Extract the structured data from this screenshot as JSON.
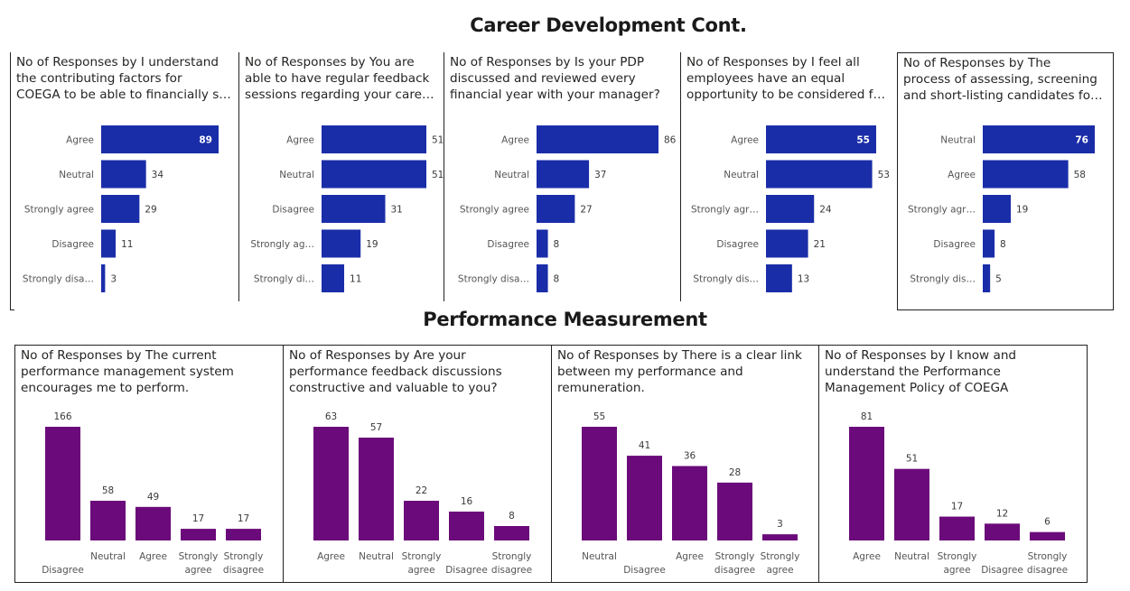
{
  "titles": {
    "career": "Career Development Cont.",
    "performance": "Performance Measurement"
  },
  "colors": {
    "bar_blue": "#1a2da8",
    "bar_purple": "#6b0a7a",
    "value_label_dark": "#3a3a3a",
    "value_label_light": "#ffffff"
  },
  "chart_data": [
    {
      "type": "bar",
      "orientation": "horizontal",
      "title_lines": [
        "No of Responses by I understand",
        "the contributing factors for",
        "COEGA to be able to financially s…"
      ],
      "categories": [
        "Agree",
        "Neutral",
        "Strongly agree",
        "Disagree",
        "Strongly disa…"
      ],
      "values": [
        89,
        34,
        29,
        11,
        3
      ],
      "label_inside_first": true
    },
    {
      "type": "bar",
      "orientation": "horizontal",
      "title_lines": [
        "No of Responses by You are",
        "able to have regular feedback",
        "sessions regarding your care…"
      ],
      "categories": [
        "Agree",
        "Neutral",
        "Disagree",
        "Strongly ag…",
        "Strongly di…"
      ],
      "values": [
        51,
        51,
        31,
        19,
        11
      ],
      "label_inside_first": false
    },
    {
      "type": "bar",
      "orientation": "horizontal",
      "title_lines": [
        "No of Responses by Is your PDP",
        "discussed and reviewed every",
        "financial year with your manager?"
      ],
      "categories": [
        "Agree",
        "Neutral",
        "Strongly agree",
        "Disagree",
        "Strongly disa…"
      ],
      "values": [
        86,
        37,
        27,
        8,
        8
      ],
      "label_inside_first": false
    },
    {
      "type": "bar",
      "orientation": "horizontal",
      "title_lines": [
        "No of Responses by I feel all",
        "employees have an equal",
        "opportunity to be considered f…"
      ],
      "categories": [
        "Agree",
        "Neutral",
        "Strongly agr…",
        "Disagree",
        "Strongly dis…"
      ],
      "values": [
        55,
        53,
        24,
        21,
        13
      ],
      "label_inside_first": true
    },
    {
      "type": "bar",
      "orientation": "horizontal",
      "title_lines": [
        "No of Responses by The",
        "process of assessing, screening",
        "and short-listing candidates fo…"
      ],
      "categories": [
        "Neutral",
        "Agree",
        "Strongly agr…",
        "Disagree",
        "Strongly dis…"
      ],
      "values": [
        76,
        58,
        19,
        8,
        5
      ],
      "label_inside_first": true
    },
    {
      "type": "bar",
      "orientation": "vertical",
      "title_lines": [
        "No of Responses by The current",
        "performance management system",
        "encourages me to perform."
      ],
      "categories": [
        [
          "Disagree"
        ],
        [
          "Neutral"
        ],
        [
          "Agree"
        ],
        [
          "Strongly",
          "agree"
        ],
        [
          "Strongly",
          "disagree"
        ]
      ],
      "values": [
        166,
        58,
        49,
        17,
        17
      ]
    },
    {
      "type": "bar",
      "orientation": "vertical",
      "title_lines": [
        "No of Responses by Are your",
        "performance feedback discussions",
        "constructive and valuable to you?"
      ],
      "categories": [
        [
          "Agree"
        ],
        [
          "Neutral"
        ],
        [
          "Strongly",
          "agree"
        ],
        [
          "Disagree"
        ],
        [
          "Strongly",
          "disagree"
        ]
      ],
      "values": [
        63,
        57,
        22,
        16,
        8
      ]
    },
    {
      "type": "bar",
      "orientation": "vertical",
      "title_lines": [
        "No of Responses by There is a clear link",
        "between my performance and",
        "remuneration."
      ],
      "categories": [
        [
          "Neutral"
        ],
        [
          "Disagree"
        ],
        [
          "Agree"
        ],
        [
          "Strongly",
          "disagree"
        ],
        [
          "Strongly",
          "agree"
        ]
      ],
      "values": [
        55,
        41,
        36,
        28,
        3
      ]
    },
    {
      "type": "bar",
      "orientation": "vertical",
      "title_lines": [
        "No of Responses by I know and",
        "understand the Performance",
        "Management Policy of COEGA"
      ],
      "categories": [
        [
          "Agree"
        ],
        [
          "Neutral"
        ],
        [
          "Strongly",
          "agree"
        ],
        [
          "Disagree"
        ],
        [
          "Strongly",
          "disagree"
        ]
      ],
      "values": [
        81,
        51,
        17,
        12,
        6
      ]
    }
  ]
}
